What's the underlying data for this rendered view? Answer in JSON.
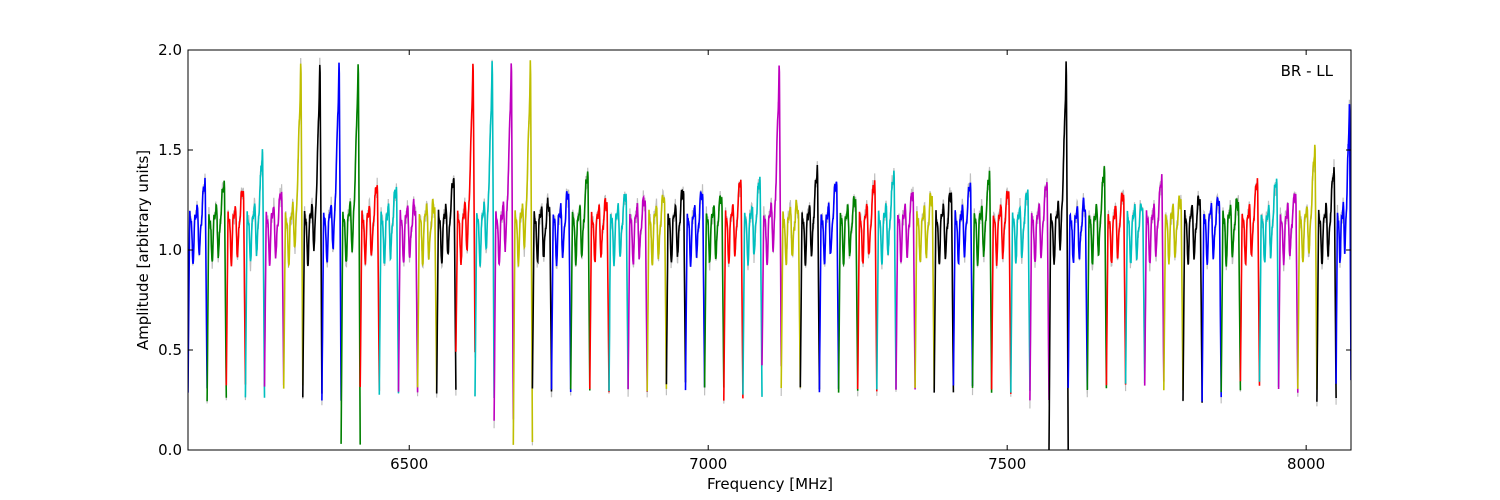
{
  "chart_data": {
    "type": "line",
    "title": "",
    "xlabel": "Frequency [MHz]",
    "ylabel": "Amplitude [arbitrary units]",
    "annotation": "BR - LL",
    "xlim": [
      6130,
      8075
    ],
    "ylim": [
      0.0,
      2.0
    ],
    "xticks": [
      6500,
      7000,
      7500,
      8000
    ],
    "yticks": [
      0.0,
      0.5,
      1.0,
      1.5,
      2.0
    ],
    "xtick_labels": [
      "6500",
      "7000",
      "7500",
      "8000"
    ],
    "ytick_labels": [
      "0.0",
      "0.5",
      "1.0",
      "1.5",
      "2.0"
    ],
    "grid": false,
    "legend": "none",
    "background_series_color": "#bfbfbf",
    "color_cycle": [
      "#0000ff",
      "#008000",
      "#ff0000",
      "#00bfbf",
      "#bf00bf",
      "#bfbf00",
      "#000000"
    ],
    "channel_width_mhz": 32,
    "channel_start_mhz": 6130,
    "series_description": [
      {
        "x_start": 6130,
        "x_end": 6162,
        "peak": 1.37,
        "min": 0.3,
        "color": "#0000ff"
      },
      {
        "x_start": 6162,
        "x_end": 6194,
        "peak": 1.37,
        "min": 0.25,
        "color": "#008000"
      },
      {
        "x_start": 6194,
        "x_end": 6226,
        "peak": 1.33,
        "min": 0.33,
        "color": "#ff0000"
      },
      {
        "x_start": 6226,
        "x_end": 6258,
        "peak": 1.54,
        "min": 0.25,
        "color": "#00bfbf"
      },
      {
        "x_start": 6258,
        "x_end": 6290,
        "peak": 1.31,
        "min": 0.33,
        "color": "#bf00bf"
      },
      {
        "x_start": 6290,
        "x_end": 6322,
        "peak": 2.0,
        "min": 0.31,
        "color": "#bfbf00"
      },
      {
        "x_start": 6322,
        "x_end": 6354,
        "peak": 2.0,
        "min": 0.27,
        "color": "#000000"
      },
      {
        "x_start": 6354,
        "x_end": 6386,
        "peak": 2.0,
        "min": 0.24,
        "color": "#0000ff"
      },
      {
        "x_start": 6386,
        "x_end": 6418,
        "peak": 2.0,
        "min": 0.04,
        "color": "#008000"
      },
      {
        "x_start": 6418,
        "x_end": 6450,
        "peak": 1.35,
        "min": 0.3,
        "color": "#ff0000"
      },
      {
        "x_start": 6450,
        "x_end": 6482,
        "peak": 1.33,
        "min": 0.29,
        "color": "#00bfbf"
      },
      {
        "x_start": 6482,
        "x_end": 6514,
        "peak": 1.21,
        "min": 0.3,
        "color": "#bf00bf"
      },
      {
        "x_start": 6514,
        "x_end": 6546,
        "peak": 1.22,
        "min": 0.3,
        "color": "#bfbf00"
      },
      {
        "x_start": 6546,
        "x_end": 6578,
        "peak": 1.39,
        "min": 0.29,
        "color": "#000000"
      },
      {
        "x_start": 6578,
        "x_end": 6610,
        "peak": 2.0,
        "min": 0.5,
        "color": "#ff0000"
      },
      {
        "x_start": 6610,
        "x_end": 6642,
        "peak": 2.0,
        "min": 0.26,
        "color": "#00bfbf"
      },
      {
        "x_start": 6642,
        "x_end": 6674,
        "peak": 2.0,
        "min": 0.14,
        "color": "#bf00bf"
      },
      {
        "x_start": 6674,
        "x_end": 6706,
        "peak": 2.0,
        "min": 0.04,
        "color": "#bfbf00"
      },
      {
        "x_start": 6706,
        "x_end": 6738,
        "peak": 1.23,
        "min": 0.3,
        "color": "#000000"
      },
      {
        "x_start": 6738,
        "x_end": 6770,
        "peak": 1.3,
        "min": 0.3,
        "color": "#0000ff"
      },
      {
        "x_start": 6770,
        "x_end": 6802,
        "peak": 1.43,
        "min": 0.3,
        "color": "#008000"
      },
      {
        "x_start": 6802,
        "x_end": 6834,
        "peak": 1.24,
        "min": 0.3,
        "color": "#ff0000"
      },
      {
        "x_start": 6834,
        "x_end": 6866,
        "peak": 1.29,
        "min": 0.3,
        "color": "#00bfbf"
      },
      {
        "x_start": 6866,
        "x_end": 6898,
        "peak": 1.27,
        "min": 0.3,
        "color": "#bf00bf"
      },
      {
        "x_start": 6898,
        "x_end": 6930,
        "peak": 1.29,
        "min": 0.3,
        "color": "#bfbf00"
      },
      {
        "x_start": 6930,
        "x_end": 6962,
        "peak": 1.33,
        "min": 0.33,
        "color": "#000000"
      },
      {
        "x_start": 6962,
        "x_end": 6994,
        "peak": 1.31,
        "min": 0.3,
        "color": "#0000ff"
      },
      {
        "x_start": 6994,
        "x_end": 7026,
        "peak": 1.28,
        "min": 0.3,
        "color": "#008000"
      },
      {
        "x_start": 7026,
        "x_end": 7058,
        "peak": 1.38,
        "min": 0.25,
        "color": "#ff0000"
      },
      {
        "x_start": 7058,
        "x_end": 7090,
        "peak": 1.39,
        "min": 0.28,
        "color": "#00bfbf"
      },
      {
        "x_start": 7090,
        "x_end": 7122,
        "peak": 2.0,
        "min": 0.43,
        "color": "#bf00bf"
      },
      {
        "x_start": 7122,
        "x_end": 7154,
        "peak": 1.22,
        "min": 0.3,
        "color": "#bfbf00"
      },
      {
        "x_start": 7154,
        "x_end": 7186,
        "peak": 1.44,
        "min": 0.3,
        "color": "#000000"
      },
      {
        "x_start": 7186,
        "x_end": 7218,
        "peak": 1.38,
        "min": 0.3,
        "color": "#0000ff"
      },
      {
        "x_start": 7218,
        "x_end": 7250,
        "peak": 1.27,
        "min": 0.3,
        "color": "#008000"
      },
      {
        "x_start": 7250,
        "x_end": 7282,
        "peak": 1.37,
        "min": 0.3,
        "color": "#ff0000"
      },
      {
        "x_start": 7282,
        "x_end": 7314,
        "peak": 1.42,
        "min": 0.31,
        "color": "#00bfbf"
      },
      {
        "x_start": 7314,
        "x_end": 7346,
        "peak": 1.3,
        "min": 0.31,
        "color": "#bf00bf"
      },
      {
        "x_start": 7346,
        "x_end": 7378,
        "peak": 1.28,
        "min": 0.3,
        "color": "#bfbf00"
      },
      {
        "x_start": 7378,
        "x_end": 7410,
        "peak": 1.31,
        "min": 0.3,
        "color": "#000000"
      },
      {
        "x_start": 7410,
        "x_end": 7442,
        "peak": 1.37,
        "min": 0.33,
        "color": "#0000ff"
      },
      {
        "x_start": 7442,
        "x_end": 7474,
        "peak": 1.42,
        "min": 0.3,
        "color": "#008000"
      },
      {
        "x_start": 7474,
        "x_end": 7506,
        "peak": 1.32,
        "min": 0.29,
        "color": "#ff0000"
      },
      {
        "x_start": 7506,
        "x_end": 7538,
        "peak": 1.31,
        "min": 0.3,
        "color": "#00bfbf"
      },
      {
        "x_start": 7538,
        "x_end": 7570,
        "peak": 1.37,
        "min": 0.24,
        "color": "#bf00bf"
      },
      {
        "x_start": 7570,
        "x_end": 7602,
        "peak": 2.0,
        "min": 0.0,
        "color": "#000000"
      },
      {
        "x_start": 7602,
        "x_end": 7634,
        "peak": 1.23,
        "min": 0.3,
        "color": "#0000ff"
      },
      {
        "x_start": 7634,
        "x_end": 7666,
        "peak": 1.45,
        "min": 0.3,
        "color": "#008000"
      },
      {
        "x_start": 7666,
        "x_end": 7698,
        "peak": 1.31,
        "min": 0.33,
        "color": "#ff0000"
      },
      {
        "x_start": 7698,
        "x_end": 7730,
        "peak": 1.22,
        "min": 0.33,
        "color": "#00bfbf"
      },
      {
        "x_start": 7730,
        "x_end": 7762,
        "peak": 1.39,
        "min": 0.33,
        "color": "#bf00bf"
      },
      {
        "x_start": 7762,
        "x_end": 7794,
        "peak": 1.26,
        "min": 0.3,
        "color": "#bfbf00"
      },
      {
        "x_start": 7794,
        "x_end": 7826,
        "peak": 1.27,
        "min": 0.25,
        "color": "#000000"
      },
      {
        "x_start": 7826,
        "x_end": 7858,
        "peak": 1.26,
        "min": 0.25,
        "color": "#0000ff"
      },
      {
        "x_start": 7858,
        "x_end": 7890,
        "peak": 1.25,
        "min": 0.3,
        "color": "#008000"
      },
      {
        "x_start": 7890,
        "x_end": 7922,
        "peak": 1.37,
        "min": 0.33,
        "color": "#ff0000"
      },
      {
        "x_start": 7922,
        "x_end": 7954,
        "peak": 1.39,
        "min": 0.33,
        "color": "#00bfbf"
      },
      {
        "x_start": 7954,
        "x_end": 7986,
        "peak": 1.29,
        "min": 0.3,
        "color": "#bf00bf"
      },
      {
        "x_start": 7986,
        "x_end": 8018,
        "peak": 1.57,
        "min": 0.3,
        "color": "#bfbf00"
      },
      {
        "x_start": 8018,
        "x_end": 8050,
        "peak": 1.45,
        "min": 0.25,
        "color": "#000000"
      },
      {
        "x_start": 8050,
        "x_end": 8075,
        "peak": 1.78,
        "min": 0.34,
        "color": "#0000ff"
      }
    ]
  }
}
